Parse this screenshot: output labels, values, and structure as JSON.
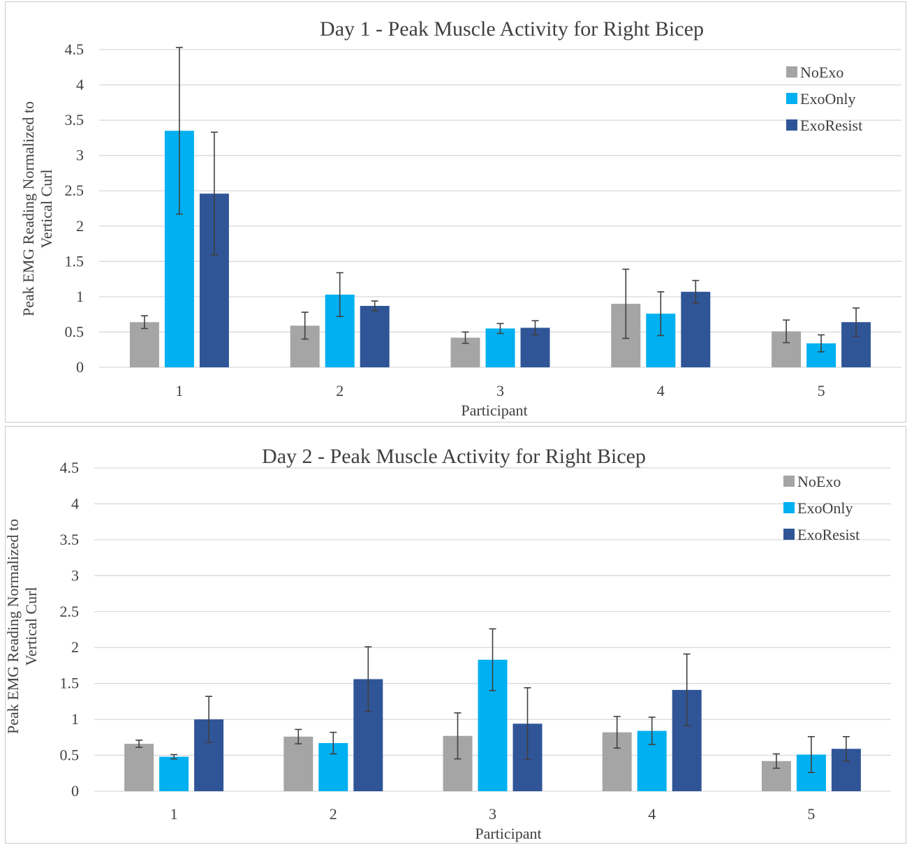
{
  "chart_data": [
    {
      "type": "bar",
      "title": "Day 1 - Peak Muscle Activity for Right Bicep",
      "xlabel": "Participant",
      "ylabel_lines": [
        "Peak EMG Reading Normalized to",
        "Vertical  Curl"
      ],
      "categories": [
        "1",
        "2",
        "3",
        "4",
        "5"
      ],
      "yticks": [
        "0",
        "0.5",
        "1",
        "1.5",
        "2",
        "2.5",
        "3",
        "3.5",
        "4",
        "4.5"
      ],
      "ylim": [
        0,
        4.5
      ],
      "grid": true,
      "legend_position": "top-right",
      "series": [
        {
          "name": "NoExo",
          "color": "#a5a5a5",
          "values": [
            0.64,
            0.59,
            0.42,
            0.9,
            0.51
          ],
          "error": [
            0.09,
            0.19,
            0.08,
            0.49,
            0.16
          ]
        },
        {
          "name": "ExoOnly",
          "color": "#00b0f0",
          "values": [
            3.35,
            1.03,
            0.55,
            0.76,
            0.34
          ],
          "error": [
            1.18,
            0.31,
            0.07,
            0.31,
            0.12
          ]
        },
        {
          "name": "ExoResist",
          "color": "#2f5597",
          "values": [
            2.46,
            0.87,
            0.56,
            1.07,
            0.64
          ],
          "error": [
            0.87,
            0.07,
            0.1,
            0.16,
            0.2
          ]
        }
      ]
    },
    {
      "type": "bar",
      "title": "Day 2 - Peak Muscle Activity for Right Bicep",
      "xlabel": "Participant",
      "ylabel_lines": [
        "Peak EMG Reading Normalized to",
        "Vertical  Curl"
      ],
      "categories": [
        "1",
        "2",
        "3",
        "4",
        "5"
      ],
      "yticks": [
        "0",
        "0.5",
        "1",
        "1.5",
        "2",
        "2.5",
        "3",
        "3.5",
        "4",
        "4.5"
      ],
      "ylim": [
        0,
        4.5
      ],
      "grid": true,
      "legend_position": "top-right",
      "series": [
        {
          "name": "NoExo",
          "color": "#a5a5a5",
          "values": [
            0.66,
            0.76,
            0.77,
            0.82,
            0.42
          ],
          "error": [
            0.05,
            0.1,
            0.32,
            0.22,
            0.1
          ]
        },
        {
          "name": "ExoOnly",
          "color": "#00b0f0",
          "values": [
            0.48,
            0.67,
            1.83,
            0.84,
            0.51
          ],
          "error": [
            0.03,
            0.15,
            0.43,
            0.19,
            0.25
          ]
        },
        {
          "name": "ExoResist",
          "color": "#2f5597",
          "values": [
            1.0,
            1.56,
            0.94,
            1.41,
            0.59
          ],
          "error": [
            0.32,
            0.45,
            0.5,
            0.5,
            0.17
          ]
        }
      ]
    }
  ]
}
